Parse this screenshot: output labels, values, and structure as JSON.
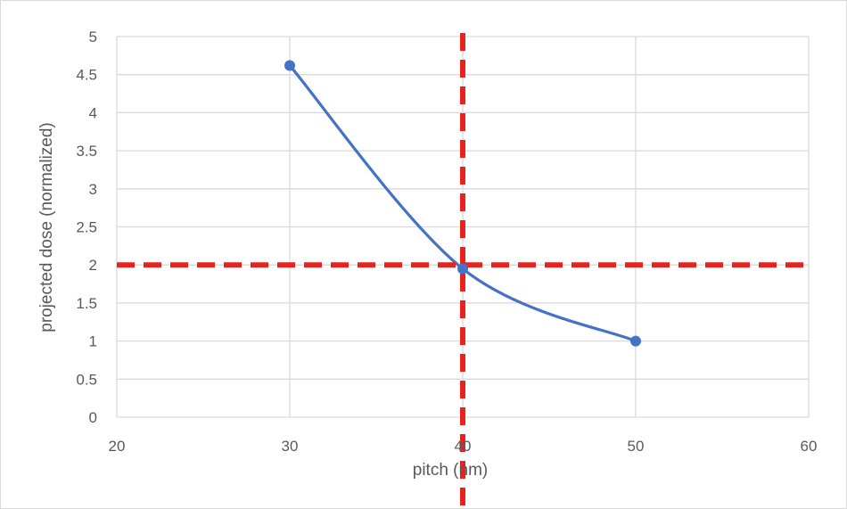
{
  "chart_data": {
    "type": "line",
    "title": "",
    "xlabel": "pitch (nm)",
    "ylabel": "projected dose (normalized)",
    "xlim": [
      20,
      60
    ],
    "ylim": [
      0,
      5
    ],
    "x_ticks": [
      "20",
      "30",
      "40",
      "50",
      "60"
    ],
    "y_ticks": [
      "0",
      "0.5",
      "1",
      "1.5",
      "2",
      "2.5",
      "3",
      "3.5",
      "4",
      "4.5",
      "5"
    ],
    "grid": true,
    "legend": "none",
    "series": [
      {
        "x": [
          30,
          40,
          50
        ],
        "y": [
          4.62,
          1.95,
          1.0
        ],
        "color": "#4472C4",
        "smooth": true,
        "markers": true
      }
    ],
    "reference_lines": [
      {
        "orientation": "vertical",
        "value": 40,
        "color": "#E8231F",
        "style": "dashed"
      },
      {
        "orientation": "horizontal",
        "value": 2,
        "color": "#E8231F",
        "style": "dashed"
      }
    ],
    "colors": {
      "gridline": "#d9d9d9",
      "axis_text": "#595959"
    }
  }
}
